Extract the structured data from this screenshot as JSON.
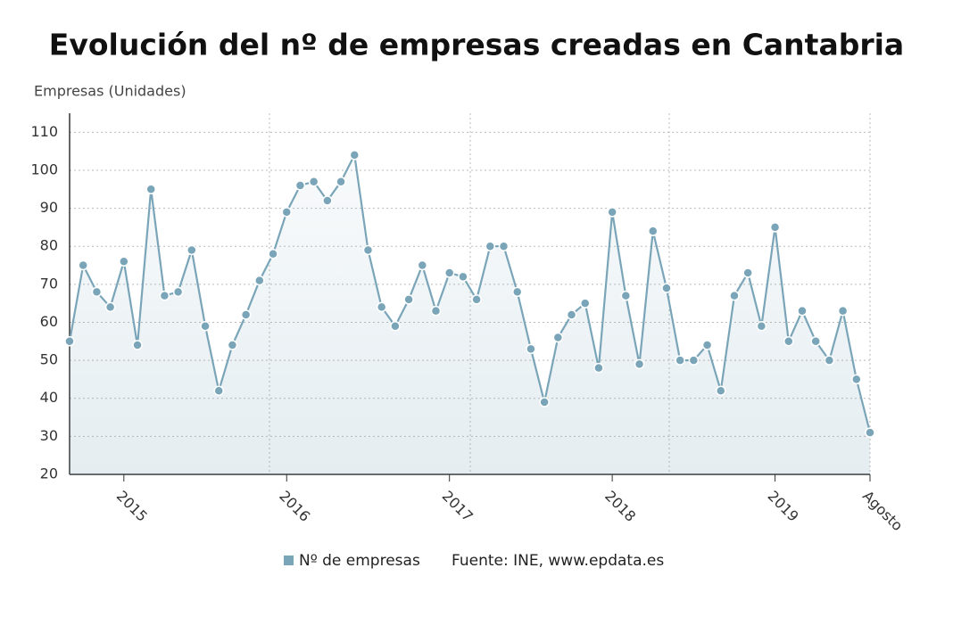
{
  "chart_data": {
    "type": "line",
    "title": "Evolución del nº de empresas creadas en Cantabria",
    "y_axis_label": "Empresas (Unidades)",
    "source": "Fuente: INE, www.epdata.es",
    "categories": [
      null,
      null,
      null,
      null,
      "2015",
      null,
      null,
      null,
      null,
      null,
      null,
      null,
      null,
      null,
      null,
      null,
      "2016",
      null,
      null,
      null,
      null,
      null,
      null,
      null,
      null,
      null,
      null,
      null,
      "2017",
      null,
      null,
      null,
      null,
      null,
      null,
      null,
      null,
      null,
      null,
      null,
      "2018",
      null,
      null,
      null,
      null,
      null,
      null,
      null,
      null,
      null,
      null,
      null,
      "2019",
      null,
      null,
      null,
      null,
      null,
      null,
      "Agosto"
    ],
    "series": [
      {
        "name": "Nº de empresas",
        "color": "#7aa5b8",
        "values": [
          55,
          75,
          68,
          64,
          76,
          54,
          95,
          67,
          68,
          79,
          59,
          42,
          54,
          62,
          71,
          78,
          89,
          96,
          97,
          92,
          97,
          104,
          79,
          64,
          59,
          66,
          75,
          63,
          73,
          72,
          66,
          80,
          80,
          68,
          53,
          39,
          56,
          62,
          65,
          48,
          89,
          67,
          49,
          84,
          69,
          50,
          50,
          54,
          42,
          67,
          73,
          59,
          85,
          55,
          63,
          55,
          50,
          63,
          45,
          31
        ]
      }
    ],
    "ylim": [
      20,
      115
    ],
    "yticks": [
      20,
      30,
      40,
      50,
      60,
      70,
      80,
      90,
      100,
      110
    ],
    "grid": true
  }
}
